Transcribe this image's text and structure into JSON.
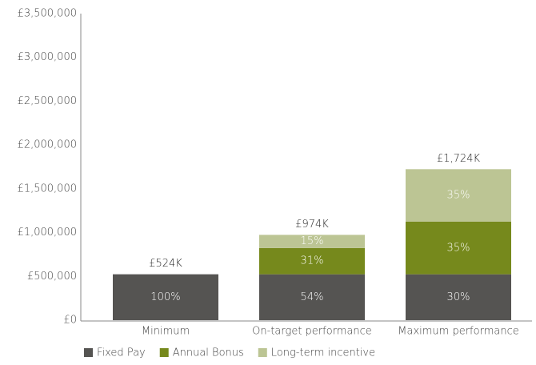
{
  "chart_data": {
    "type": "stacked_bar",
    "categories": [
      "Minimum",
      "On-target performance",
      "Maximum performance"
    ],
    "series": [
      {
        "name": "Fixed Pay",
        "color": "#555452",
        "values": [
          524000,
          524000,
          524000
        ],
        "share_labels": [
          "100%",
          "54%",
          "30%"
        ]
      },
      {
        "name": "Annual Bonus",
        "color": "#76891c",
        "values": [
          0,
          300000,
          600000
        ],
        "share_labels": [
          null,
          "31%",
          "35%"
        ]
      },
      {
        "name": "Long-term incentive",
        "color": "#bcc594",
        "values": [
          0,
          150000,
          600000
        ],
        "share_labels": [
          null,
          "15%",
          "35%"
        ]
      }
    ],
    "totals": [
      524000,
      974000,
      1724000
    ],
    "total_labels": [
      "£524K",
      "£974K",
      "£1,724K"
    ],
    "ylim": [
      0,
      3500000
    ],
    "yticks": [
      {
        "value": 0,
        "label": "£0"
      },
      {
        "value": 500000,
        "label": "£500,000"
      },
      {
        "value": 1000000,
        "label": "£1,000,000"
      },
      {
        "value": 1500000,
        "label": "£1,500,000"
      },
      {
        "value": 2000000,
        "label": "£2,000,000"
      },
      {
        "value": 2500000,
        "label": "£2,500,000"
      },
      {
        "value": 3000000,
        "label": "£3,000,000"
      },
      {
        "value": 3500000,
        "label": "£3,500,000"
      }
    ],
    "grid": false,
    "legend": "bottom"
  }
}
